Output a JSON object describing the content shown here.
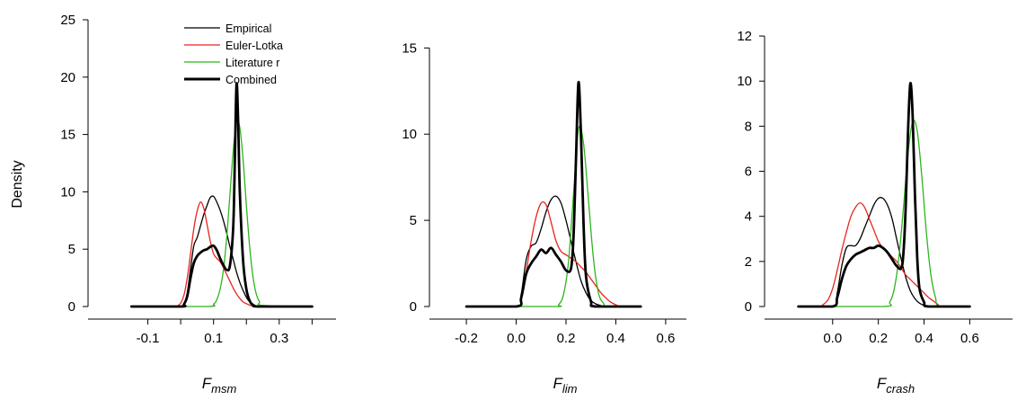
{
  "figure": {
    "ylabel": "Density"
  },
  "legend": {
    "items": [
      {
        "label": "Empirical",
        "color": "#000000"
      },
      {
        "label": "Euler-Lotka",
        "color": "#e8241c"
      },
      {
        "label": "Literature r",
        "color": "#2db51c"
      },
      {
        "label": "Combined",
        "color": "#000000"
      }
    ]
  },
  "chart_data": [
    {
      "type": "line",
      "xlabel_main": "F",
      "xlabel_sub": "msm",
      "ylabel": "Density",
      "xlim": [
        -0.2,
        0.44
      ],
      "ylim": [
        0,
        25
      ],
      "xticks": [
        -0.1,
        0.1,
        0.3
      ],
      "xtick_labels": [
        "-0.1",
        "0.1",
        "0.3"
      ],
      "xticks_minor": [
        0.0,
        0.2,
        0.4
      ],
      "yticks": [
        0,
        5,
        10,
        15,
        20,
        25
      ],
      "ytick_labels": [
        "0",
        "5",
        "10",
        "15",
        "20",
        "25"
      ],
      "legend": "top-right",
      "series": [
        {
          "name": "Empirical",
          "color": "#000000",
          "width": 1.3,
          "x": [
            -0.15,
            0.0,
            0.01,
            0.02,
            0.03,
            0.04,
            0.05,
            0.06,
            0.07,
            0.08,
            0.09,
            0.1,
            0.11,
            0.12,
            0.13,
            0.14,
            0.15,
            0.16,
            0.17,
            0.18,
            0.19,
            0.2,
            0.21,
            0.22,
            0.23,
            0.24,
            0.4
          ],
          "y": [
            0,
            0,
            0.2,
            1.2,
            3.3,
            5.3,
            6.0,
            7.0,
            8.0,
            8.8,
            9.5,
            9.6,
            9.1,
            8.4,
            7.5,
            6.4,
            5.2,
            4.1,
            3.0,
            2.1,
            1.4,
            0.8,
            0.4,
            0.2,
            0.05,
            0,
            0
          ]
        },
        {
          "name": "Euler-Lotka",
          "color": "#e8241c",
          "width": 1.3,
          "x": [
            -0.15,
            -0.02,
            -0.01,
            0.0,
            0.01,
            0.02,
            0.03,
            0.04,
            0.05,
            0.06,
            0.07,
            0.08,
            0.09,
            0.1,
            0.11,
            0.12,
            0.13,
            0.14,
            0.15,
            0.16,
            0.17,
            0.18,
            0.19,
            0.2,
            0.21,
            0.22,
            0.23,
            0.24,
            0.4
          ],
          "y": [
            0,
            0,
            0.05,
            0.3,
            1.0,
            2.5,
            4.6,
            6.8,
            8.3,
            9.1,
            8.6,
            7.2,
            5.7,
            4.6,
            4.2,
            3.9,
            3.4,
            2.8,
            2.2,
            1.6,
            1.1,
            0.7,
            0.4,
            0.25,
            0.12,
            0.05,
            0.02,
            0,
            0
          ]
        },
        {
          "name": "Literature r",
          "color": "#2db51c",
          "width": 1.3,
          "x": [
            -0.15,
            0.08,
            0.1,
            0.11,
            0.12,
            0.13,
            0.14,
            0.15,
            0.16,
            0.17,
            0.18,
            0.19,
            0.2,
            0.21,
            0.22,
            0.23,
            0.24,
            0.25,
            0.4
          ],
          "y": [
            0,
            0,
            0.2,
            0.6,
            1.5,
            3.2,
            6.0,
            9.8,
            13.6,
            16.1,
            15.6,
            12.8,
            8.8,
            5.2,
            2.6,
            1.1,
            0.4,
            0.1,
            0
          ]
        },
        {
          "name": "Combined",
          "color": "#000000",
          "width": 2.8,
          "x": [
            -0.15,
            0.0,
            0.01,
            0.02,
            0.03,
            0.04,
            0.05,
            0.06,
            0.07,
            0.08,
            0.09,
            0.1,
            0.11,
            0.12,
            0.13,
            0.14,
            0.15,
            0.16,
            0.165,
            0.17,
            0.175,
            0.18,
            0.19,
            0.2,
            0.21,
            0.22,
            0.24,
            0.4
          ],
          "y": [
            0,
            0,
            0.2,
            0.9,
            2.5,
            3.8,
            4.4,
            4.7,
            4.9,
            5.0,
            5.2,
            5.3,
            4.9,
            4.2,
            3.6,
            3.2,
            3.6,
            7.0,
            13.0,
            19.4,
            16.0,
            10.0,
            4.0,
            1.5,
            0.5,
            0.15,
            0,
            0
          ]
        }
      ]
    },
    {
      "type": "line",
      "xlabel_main": "F",
      "xlabel_sub": "lim",
      "ylabel": "",
      "xlim": [
        -0.24,
        0.64
      ],
      "ylim": [
        0,
        17
      ],
      "xticks": [
        -0.2,
        0.0,
        0.2,
        0.4,
        0.6
      ],
      "xtick_labels": [
        "-0.2",
        "0.0",
        "0.2",
        "0.4",
        "0.6"
      ],
      "yticks": [
        0,
        5,
        10,
        15
      ],
      "ytick_labels": [
        "0",
        "5",
        "10",
        "15"
      ],
      "series": [
        {
          "name": "Empirical",
          "color": "#000000",
          "width": 1.3,
          "x": [
            -0.2,
            0.0,
            0.02,
            0.04,
            0.06,
            0.08,
            0.1,
            0.12,
            0.14,
            0.16,
            0.18,
            0.2,
            0.22,
            0.24,
            0.26,
            0.28,
            0.3,
            0.32,
            0.34,
            0.36,
            0.5
          ],
          "y": [
            0,
            0,
            0.7,
            2.7,
            3.5,
            3.7,
            4.5,
            5.5,
            6.2,
            6.4,
            6.0,
            5.0,
            3.8,
            2.6,
            1.5,
            0.8,
            0.35,
            0.15,
            0.05,
            0,
            0
          ]
        },
        {
          "name": "Euler-Lotka",
          "color": "#e8241c",
          "width": 1.3,
          "x": [
            -0.2,
            0.0,
            0.02,
            0.04,
            0.06,
            0.08,
            0.1,
            0.12,
            0.14,
            0.16,
            0.18,
            0.2,
            0.22,
            0.24,
            0.26,
            0.28,
            0.3,
            0.32,
            0.34,
            0.36,
            0.38,
            0.4,
            0.42,
            0.5
          ],
          "y": [
            0,
            0,
            0.6,
            2.0,
            3.8,
            5.2,
            6.0,
            5.9,
            4.9,
            3.8,
            3.2,
            3.0,
            2.8,
            2.6,
            2.3,
            2.0,
            1.6,
            1.2,
            0.8,
            0.5,
            0.25,
            0.1,
            0,
            0
          ]
        },
        {
          "name": "Literature r",
          "color": "#2db51c",
          "width": 1.3,
          "x": [
            -0.2,
            0.15,
            0.17,
            0.19,
            0.21,
            0.23,
            0.25,
            0.27,
            0.29,
            0.31,
            0.33,
            0.35,
            0.37,
            0.5
          ],
          "y": [
            0,
            0,
            0.1,
            0.7,
            2.6,
            6.5,
            10.3,
            9.5,
            6.2,
            2.8,
            0.8,
            0.2,
            0,
            0
          ]
        },
        {
          "name": "Combined",
          "color": "#000000",
          "width": 2.8,
          "x": [
            -0.2,
            0.0,
            0.02,
            0.04,
            0.06,
            0.08,
            0.1,
            0.12,
            0.14,
            0.16,
            0.18,
            0.2,
            0.22,
            0.23,
            0.24,
            0.25,
            0.26,
            0.27,
            0.28,
            0.3,
            0.32,
            0.5
          ],
          "y": [
            0,
            0,
            0.5,
            1.9,
            2.5,
            2.9,
            3.3,
            3.1,
            3.4,
            3.0,
            2.6,
            2.1,
            2.2,
            4.0,
            8.5,
            13.0,
            10.0,
            5.0,
            1.8,
            0.3,
            0,
            0
          ]
        }
      ]
    },
    {
      "type": "line",
      "xlabel_main": "F",
      "xlabel_sub": "crash",
      "ylabel": "",
      "xlim": [
        -0.18,
        0.74
      ],
      "ylim": [
        0,
        13
      ],
      "xticks": [
        0.0,
        0.2,
        0.4,
        0.6
      ],
      "xtick_labels": [
        "0.0",
        "0.2",
        "0.4",
        "0.6"
      ],
      "yticks": [
        0,
        2,
        4,
        6,
        8,
        10,
        12
      ],
      "ytick_labels": [
        "0",
        "2",
        "4",
        "6",
        "8",
        "10",
        "12"
      ],
      "series": [
        {
          "name": "Empirical",
          "color": "#000000",
          "width": 1.3,
          "x": [
            -0.15,
            0.0,
            0.02,
            0.04,
            0.06,
            0.08,
            0.1,
            0.12,
            0.14,
            0.16,
            0.18,
            0.2,
            0.22,
            0.24,
            0.26,
            0.28,
            0.3,
            0.32,
            0.34,
            0.36,
            0.38,
            0.4,
            0.42,
            0.6
          ],
          "y": [
            0,
            0,
            0.6,
            1.8,
            2.6,
            2.7,
            2.7,
            3.0,
            3.5,
            4.0,
            4.5,
            4.8,
            4.8,
            4.5,
            3.9,
            3.0,
            2.1,
            1.3,
            0.7,
            0.35,
            0.15,
            0.05,
            0,
            0
          ]
        },
        {
          "name": "Euler-Lotka",
          "color": "#e8241c",
          "width": 1.3,
          "x": [
            -0.15,
            -0.06,
            -0.04,
            -0.02,
            0.0,
            0.02,
            0.04,
            0.06,
            0.08,
            0.1,
            0.12,
            0.14,
            0.16,
            0.18,
            0.2,
            0.22,
            0.24,
            0.26,
            0.28,
            0.3,
            0.32,
            0.34,
            0.36,
            0.38,
            0.4,
            0.42,
            0.44,
            0.46,
            0.48,
            0.6
          ],
          "y": [
            0,
            0,
            0.1,
            0.3,
            0.8,
            1.6,
            2.5,
            3.3,
            4.0,
            4.4,
            4.6,
            4.4,
            3.9,
            3.4,
            2.9,
            2.6,
            2.4,
            2.2,
            2.0,
            1.7,
            1.4,
            1.2,
            1.0,
            0.8,
            0.6,
            0.4,
            0.25,
            0.1,
            0,
            0
          ]
        },
        {
          "name": "Literature r",
          "color": "#2db51c",
          "width": 1.3,
          "x": [
            -0.15,
            0.22,
            0.25,
            0.27,
            0.29,
            0.31,
            0.33,
            0.35,
            0.37,
            0.39,
            0.41,
            0.43,
            0.45,
            0.47,
            0.6
          ],
          "y": [
            0,
            0,
            0.2,
            0.8,
            2.2,
            4.4,
            6.8,
            8.2,
            7.8,
            5.8,
            3.3,
            1.4,
            0.4,
            0,
            0
          ]
        },
        {
          "name": "Combined",
          "color": "#000000",
          "width": 2.8,
          "x": [
            -0.15,
            0.0,
            0.02,
            0.04,
            0.06,
            0.08,
            0.1,
            0.12,
            0.14,
            0.16,
            0.18,
            0.2,
            0.22,
            0.24,
            0.26,
            0.28,
            0.3,
            0.31,
            0.32,
            0.33,
            0.34,
            0.35,
            0.36,
            0.37,
            0.38,
            0.4,
            0.42,
            0.6
          ],
          "y": [
            0,
            0,
            0.4,
            1.2,
            1.8,
            2.1,
            2.3,
            2.4,
            2.5,
            2.6,
            2.6,
            2.7,
            2.6,
            2.4,
            2.1,
            1.8,
            1.7,
            2.4,
            4.5,
            7.8,
            9.9,
            8.5,
            5.0,
            2.2,
            0.8,
            0.2,
            0,
            0
          ]
        }
      ]
    }
  ]
}
